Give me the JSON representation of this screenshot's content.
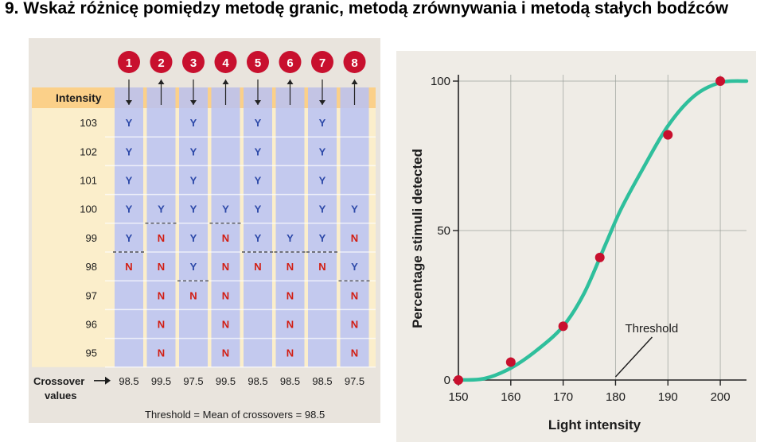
{
  "title": "9. Wskaż różnicę pomiędzy metodę granic, metodą zrównywania i metodą stałych bodźców",
  "colors": {
    "header_band": "#fbd089",
    "table_bg": "#fbeecb",
    "column_fill": "#b9c2f4",
    "yes": "#2c48a8",
    "no": "#d21d12",
    "marker": "#c8102e",
    "curve": "#2fbf9c",
    "panel": "#efece6"
  },
  "chart_data": [
    {
      "type": "table",
      "header_label": "Intensity",
      "series_numbers": [
        "1",
        "2",
        "3",
        "4",
        "5",
        "6",
        "7",
        "8"
      ],
      "direction": [
        "down",
        "up",
        "down",
        "up",
        "down",
        "up",
        "down",
        "up"
      ],
      "intensities": [
        "103",
        "102",
        "101",
        "100",
        "99",
        "98",
        "97",
        "96",
        "95"
      ],
      "responses": [
        [
          "Y",
          "",
          "Y",
          "",
          "Y",
          "",
          "Y",
          ""
        ],
        [
          "Y",
          "",
          "Y",
          "",
          "Y",
          "",
          "Y",
          ""
        ],
        [
          "Y",
          "",
          "Y",
          "",
          "Y",
          "",
          "Y",
          ""
        ],
        [
          "Y",
          "Y",
          "Y",
          "Y",
          "Y",
          "",
          "Y",
          "Y"
        ],
        [
          "Y",
          "N",
          "Y",
          "N",
          "Y",
          "Y",
          "Y",
          "N"
        ],
        [
          "N",
          "N",
          "Y",
          "N",
          "N",
          "N",
          "N",
          "Y"
        ],
        [
          "",
          "N",
          "N",
          "N",
          "",
          "N",
          "",
          "N"
        ],
        [
          "",
          "N",
          "",
          "N",
          "",
          "N",
          "",
          "N"
        ],
        [
          "",
          "N",
          "",
          "N",
          "",
          "N",
          "",
          "N"
        ]
      ],
      "crossover_label": "Crossover\nvalues",
      "crossover_values": [
        "98.5",
        "99.5",
        "97.5",
        "99.5",
        "98.5",
        "98.5",
        "98.5",
        "97.5"
      ],
      "threshold_text": "Threshold = Mean of crossovers = 98.5"
    },
    {
      "type": "line",
      "xlabel": "Light intensity",
      "ylabel": "Percentage stimuli detected",
      "x_ticks": [
        "150",
        "160",
        "170",
        "180",
        "190",
        "200"
      ],
      "y_ticks": [
        "0",
        "50",
        "100"
      ],
      "xlim": [
        150,
        205
      ],
      "ylim": [
        0,
        100
      ],
      "points": [
        {
          "x": 150,
          "y": 0
        },
        {
          "x": 160,
          "y": 6
        },
        {
          "x": 170,
          "y": 18
        },
        {
          "x": 177,
          "y": 41
        },
        {
          "x": 190,
          "y": 82
        },
        {
          "x": 200,
          "y": 100
        }
      ],
      "curve": [
        [
          150,
          0
        ],
        [
          155,
          0.5
        ],
        [
          160,
          4
        ],
        [
          165,
          10
        ],
        [
          170,
          18
        ],
        [
          174,
          29
        ],
        [
          178,
          45
        ],
        [
          181,
          57
        ],
        [
          185,
          70
        ],
        [
          190,
          85
        ],
        [
          195,
          95
        ],
        [
          200,
          99.5
        ],
        [
          205,
          100
        ]
      ],
      "annotation": "Threshold",
      "annotation_x": 180,
      "annotation_y": 50,
      "grid": true
    }
  ]
}
